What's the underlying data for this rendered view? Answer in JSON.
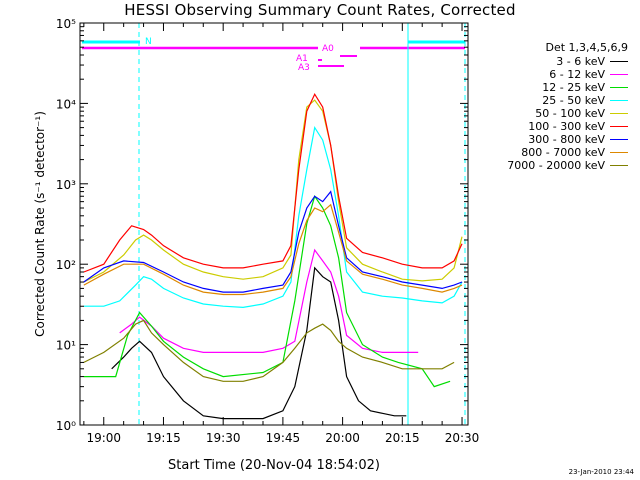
{
  "chart_data": {
    "type": "line",
    "title": "HESSI Observing Summary Count Rates, Corrected",
    "xlabel": "Start Time (20-Nov-04 18:54:02)",
    "ylabel": "Corrected Count Rate (s⁻¹ detector⁻¹)",
    "y_scale": "log",
    "ylim": [
      1,
      100000
    ],
    "xlim": [
      "18:54:02",
      "20:31:30"
    ],
    "x_ticks": [
      "19:00",
      "19:15",
      "19:30",
      "19:45",
      "20:00",
      "20:15",
      "20:30"
    ],
    "y_ticks": [
      "10⁰",
      "10¹",
      "10²",
      "10³",
      "10⁴",
      "10⁵"
    ],
    "legend_title": "Det 1,3,4,5,6,9",
    "series": [
      {
        "name": "3 - 6 keV",
        "color": "#000000",
        "x": [
          "19:02",
          "19:05",
          "19:07",
          "19:09",
          "19:12",
          "19:15",
          "19:20",
          "19:25",
          "19:30",
          "19:40",
          "19:45",
          "19:48",
          "19:51",
          "19:53",
          "19:55",
          "19:57",
          "19:59",
          "20:01",
          "20:04",
          "20:07",
          "20:10",
          "20:13",
          "20:16"
        ],
        "y": [
          5,
          7,
          9,
          11,
          8,
          4,
          2,
          1.3,
          1.2,
          1.2,
          1.5,
          3,
          15,
          90,
          70,
          60,
          20,
          4,
          2,
          1.5,
          1.4,
          1.3,
          1.3
        ]
      },
      {
        "name": "6 - 12 keV",
        "color": "#ff00ff",
        "x": [
          "19:04",
          "19:07",
          "19:09",
          "19:12",
          "19:15",
          "19:20",
          "19:25",
          "19:30",
          "19:40",
          "19:45",
          "19:48",
          "19:51",
          "19:53",
          "19:55",
          "19:57",
          "19:59",
          "20:01",
          "20:05",
          "20:10",
          "20:14",
          "20:19"
        ],
        "y": [
          14,
          18,
          22,
          17,
          12,
          9,
          8,
          8,
          8,
          9,
          11,
          60,
          150,
          110,
          80,
          40,
          13,
          9,
          8,
          8,
          8
        ]
      },
      {
        "name": "12 - 25 keV",
        "color": "#00dd00",
        "x": [
          "18:55",
          "19:03",
          "19:06",
          "19:09",
          "19:12",
          "19:15",
          "19:20",
          "19:25",
          "19:30",
          "19:40",
          "19:45",
          "19:48",
          "19:51",
          "19:53",
          "19:55",
          "19:57",
          "19:59",
          "20:01",
          "20:05",
          "20:10",
          "20:14",
          "20:20",
          "20:23",
          "20:27"
        ],
        "y": [
          4,
          4,
          13,
          25,
          17,
          11,
          7,
          5,
          4,
          4.5,
          6,
          35,
          320,
          700,
          500,
          300,
          120,
          25,
          10,
          7,
          6,
          5,
          3,
          3.5
        ]
      },
      {
        "name": "25 - 50 keV",
        "color": "#00ffff",
        "x": [
          "18:55",
          "19:00",
          "19:04",
          "19:08",
          "19:10",
          "19:12",
          "19:15",
          "19:20",
          "19:25",
          "19:30",
          "19:35",
          "19:40",
          "19:45",
          "19:47",
          "19:49",
          "19:51",
          "19:53",
          "19:55",
          "19:57",
          "19:59",
          "20:01",
          "20:05",
          "20:10",
          "20:15",
          "20:20",
          "20:25",
          "20:28",
          "20:30"
        ],
        "y": [
          30,
          30,
          35,
          55,
          70,
          65,
          50,
          38,
          32,
          30,
          29,
          32,
          40,
          60,
          400,
          1500,
          5000,
          3500,
          1500,
          400,
          80,
          45,
          40,
          38,
          35,
          33,
          40,
          60
        ]
      },
      {
        "name": "50 - 100 keV",
        "color": "#cccc00",
        "x": [
          "18:55",
          "19:00",
          "19:05",
          "19:08",
          "19:10",
          "19:12",
          "19:15",
          "19:20",
          "19:25",
          "19:30",
          "19:35",
          "19:40",
          "19:45",
          "19:47",
          "19:49",
          "19:51",
          "19:53",
          "19:55",
          "19:57",
          "19:59",
          "20:01",
          "20:05",
          "20:10",
          "20:15",
          "20:20",
          "20:25",
          "20:28",
          "20:30"
        ],
        "y": [
          60,
          80,
          130,
          200,
          230,
          200,
          150,
          100,
          80,
          70,
          65,
          70,
          90,
          130,
          2000,
          9000,
          11000,
          8000,
          3000,
          600,
          160,
          100,
          80,
          65,
          62,
          65,
          90,
          220
        ]
      },
      {
        "name": "100 - 300 keV",
        "color": "#ff0000",
        "x": [
          "18:55",
          "19:00",
          "19:04",
          "19:07",
          "19:10",
          "19:12",
          "19:15",
          "19:20",
          "19:25",
          "19:30",
          "19:35",
          "19:40",
          "19:45",
          "19:47",
          "19:49",
          "19:51",
          "19:53",
          "19:55",
          "19:57",
          "19:59",
          "20:01",
          "20:05",
          "20:10",
          "20:15",
          "20:20",
          "20:25",
          "20:28",
          "20:30"
        ],
        "y": [
          80,
          100,
          200,
          300,
          270,
          230,
          170,
          120,
          100,
          90,
          90,
          100,
          110,
          170,
          1500,
          8000,
          13000,
          9000,
          3000,
          700,
          210,
          140,
          120,
          100,
          90,
          90,
          110,
          180
        ]
      },
      {
        "name": "300 - 800 keV",
        "color": "#0000ff",
        "x": [
          "18:55",
          "19:00",
          "19:05",
          "19:10",
          "19:15",
          "19:20",
          "19:25",
          "19:30",
          "19:35",
          "19:40",
          "19:45",
          "19:47",
          "19:49",
          "19:51",
          "19:53",
          "19:55",
          "19:57",
          "19:59",
          "20:01",
          "20:05",
          "20:10",
          "20:15",
          "20:20",
          "20:25",
          "20:28",
          "20:30"
        ],
        "y": [
          60,
          90,
          110,
          105,
          80,
          60,
          50,
          45,
          45,
          50,
          55,
          80,
          250,
          500,
          700,
          600,
          800,
          300,
          120,
          80,
          70,
          60,
          55,
          50,
          55,
          60
        ]
      },
      {
        "name": "800 - 7000 keV",
        "color": "#dd8800",
        "x": [
          "18:55",
          "19:00",
          "19:05",
          "19:10",
          "19:15",
          "19:20",
          "19:25",
          "19:30",
          "19:35",
          "19:40",
          "19:45",
          "19:47",
          "19:49",
          "19:51",
          "19:53",
          "19:55",
          "19:57",
          "19:59",
          "20:01",
          "20:05",
          "20:10",
          "20:15",
          "20:20",
          "20:25",
          "20:28",
          "20:30"
        ],
        "y": [
          55,
          75,
          100,
          100,
          75,
          55,
          45,
          42,
          42,
          45,
          50,
          70,
          180,
          350,
          500,
          450,
          550,
          250,
          110,
          75,
          65,
          55,
          50,
          45,
          50,
          55
        ]
      },
      {
        "name": "7000 - 20000 keV",
        "color": "#808000",
        "x": [
          "18:55",
          "19:00",
          "19:05",
          "19:08",
          "19:10",
          "19:12",
          "19:15",
          "19:20",
          "19:25",
          "19:30",
          "19:35",
          "19:40",
          "19:45",
          "19:48",
          "19:51",
          "19:53",
          "19:55",
          "19:57",
          "19:59",
          "20:01",
          "20:05",
          "20:10",
          "20:15",
          "20:20",
          "20:25",
          "20:28"
        ],
        "y": [
          6,
          8,
          12,
          18,
          20,
          14,
          10,
          6,
          4,
          3.5,
          3.5,
          4,
          6,
          9,
          14,
          16,
          18,
          15,
          11,
          9,
          7,
          6,
          5,
          5,
          5,
          6
        ]
      }
    ],
    "attenuator_labels": [
      "N",
      "A0",
      "A1",
      "A3"
    ],
    "grid": false,
    "legend_position": "right"
  },
  "timestamp": "23-Jan-2010 23:44"
}
